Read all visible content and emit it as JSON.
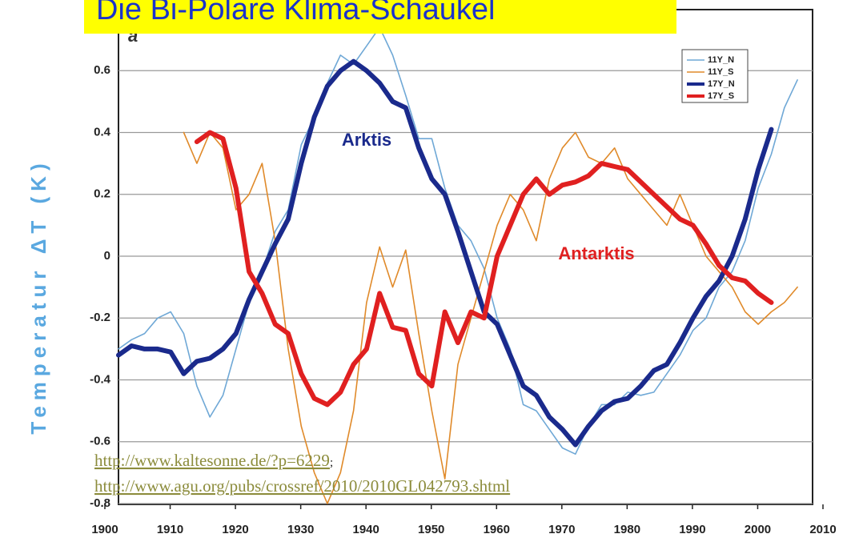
{
  "chart_data": {
    "type": "line",
    "title": "Die Bi-Polare Klima-Schaukel",
    "y_label": "Temperatur  ΔT (K)",
    "annotations": [
      "Arktis",
      "Antarktis"
    ],
    "links": [
      "http://www.kaltesonne.de/?p=6229",
      "http://www.agu.org/pubs/crossref/2010/2010GL042793.shtml"
    ],
    "link_separator": ";",
    "panel_label": "a",
    "x": [
      1900,
      1902,
      1904,
      1906,
      1908,
      1910,
      1912,
      1914,
      1916,
      1918,
      1920,
      1922,
      1924,
      1926,
      1928,
      1930,
      1932,
      1934,
      1936,
      1938,
      1940,
      1942,
      1944,
      1946,
      1948,
      1950,
      1952,
      1954,
      1956,
      1958,
      1960,
      1962,
      1964,
      1966,
      1968,
      1970,
      1972,
      1974,
      1976,
      1978,
      1980,
      1982,
      1984,
      1986,
      1988,
      1990,
      1992,
      1994,
      1996,
      1998,
      2000,
      2002,
      2004
    ],
    "series": [
      {
        "name": "11Y_N",
        "color": "#6fa8d6",
        "width": 1.6,
        "values": [
          -0.3,
          -0.27,
          -0.25,
          -0.2,
          -0.18,
          -0.25,
          -0.42,
          -0.52,
          -0.45,
          -0.3,
          -0.15,
          -0.05,
          0.08,
          0.15,
          0.36,
          0.45,
          0.56,
          0.65,
          0.62,
          0.68,
          0.74,
          0.65,
          0.52,
          0.38,
          0.38,
          0.22,
          0.1,
          0.05,
          -0.04,
          -0.2,
          -0.3,
          -0.48,
          -0.5,
          -0.56,
          -0.62,
          -0.64,
          -0.55,
          -0.48,
          -0.48,
          -0.44,
          -0.45,
          -0.44,
          -0.38,
          -0.32,
          -0.24,
          -0.2,
          -0.1,
          -0.05,
          0.05,
          0.22,
          0.33,
          0.48,
          0.57
        ]
      },
      {
        "name": "11Y_S",
        "color": "#e08a2a",
        "width": 1.6,
        "values": [
          null,
          null,
          null,
          null,
          null,
          0.4,
          0.3,
          0.4,
          0.35,
          0.15,
          0.2,
          0.3,
          0.05,
          -0.3,
          -0.55,
          -0.7,
          -0.8,
          -0.7,
          -0.5,
          -0.15,
          0.03,
          -0.1,
          0.02,
          -0.25,
          -0.5,
          -0.72,
          -0.35,
          -0.2,
          -0.05,
          0.1,
          0.2,
          0.15,
          0.05,
          0.25,
          0.35,
          0.4,
          0.32,
          0.3,
          0.35,
          0.25,
          0.2,
          0.15,
          0.1,
          0.2,
          0.1,
          0.0,
          -0.05,
          -0.1,
          -0.18,
          -0.22,
          -0.18,
          -0.15,
          -0.1
        ]
      },
      {
        "name": "17Y_N",
        "color": "#1a2a8c",
        "width": 6,
        "values": [
          -0.32,
          -0.29,
          -0.3,
          -0.3,
          -0.31,
          -0.38,
          -0.34,
          -0.33,
          -0.3,
          -0.25,
          -0.14,
          -0.05,
          0.04,
          0.12,
          0.3,
          0.45,
          0.55,
          0.6,
          0.63,
          0.6,
          0.56,
          0.5,
          0.48,
          0.35,
          0.25,
          0.2,
          0.08,
          -0.05,
          -0.18,
          -0.22,
          -0.32,
          -0.42,
          -0.45,
          -0.52,
          -0.56,
          -0.61,
          -0.55,
          -0.5,
          -0.47,
          -0.46,
          -0.42,
          -0.37,
          -0.35,
          -0.28,
          -0.2,
          -0.13,
          -0.08,
          0.0,
          0.12,
          0.28,
          0.41,
          null,
          null
        ]
      },
      {
        "name": "17Y_S",
        "color": "#e02020",
        "width": 6,
        "values": [
          null,
          null,
          null,
          null,
          null,
          null,
          0.37,
          0.4,
          0.38,
          0.22,
          -0.05,
          -0.12,
          -0.22,
          -0.25,
          -0.38,
          -0.46,
          -0.48,
          -0.44,
          -0.35,
          -0.3,
          -0.12,
          -0.23,
          -0.24,
          -0.38,
          -0.42,
          -0.18,
          -0.28,
          -0.18,
          -0.2,
          0.0,
          0.1,
          0.2,
          0.25,
          0.2,
          0.23,
          0.24,
          0.26,
          0.3,
          0.29,
          0.28,
          0.24,
          0.2,
          0.16,
          0.12,
          0.1,
          0.04,
          -0.03,
          -0.07,
          -0.08,
          -0.12,
          -0.15,
          null,
          null
        ]
      }
    ],
    "xlim": [
      1900,
      2010
    ],
    "xticks": [
      1900,
      1910,
      1920,
      1930,
      1940,
      1950,
      1960,
      1970,
      1980,
      1990,
      2000,
      2010
    ],
    "ylim": [
      -0.8,
      0.8
    ],
    "yticks": [
      0.6,
      0.4,
      0.2,
      0,
      -0.2,
      -0.4,
      -0.6,
      -0.8
    ],
    "grid": true
  }
}
